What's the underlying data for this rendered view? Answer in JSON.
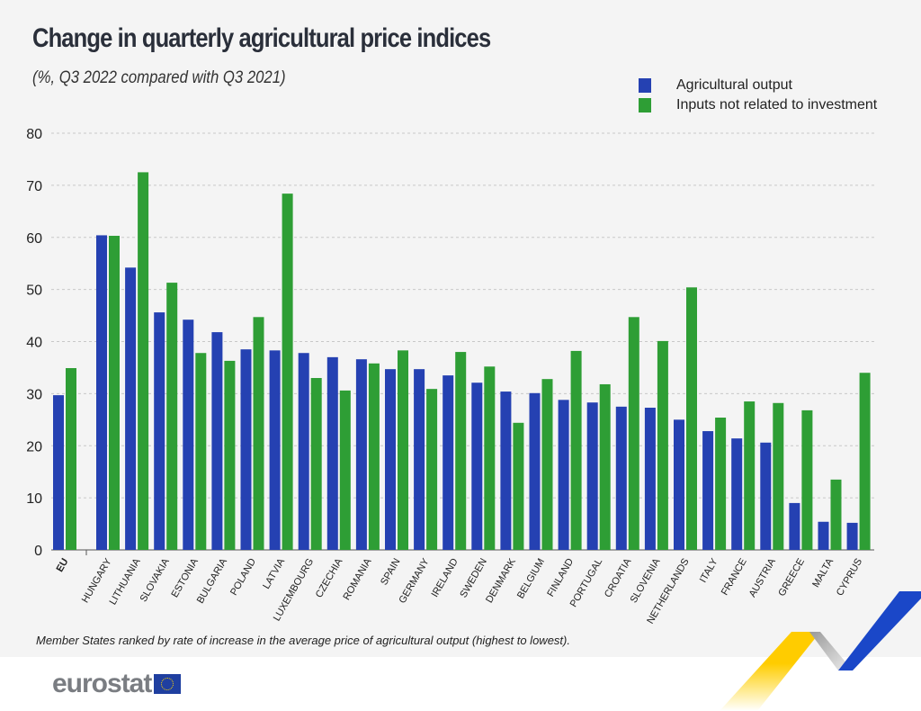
{
  "header": {
    "title": "Change in quarterly agricultural price indices",
    "subtitle": "(%, Q3 2022 compared with Q3 2021)"
  },
  "footer": {
    "note": "Member States ranked by rate of increase in the average price of agricultural output (highest to lowest).",
    "logo": "eurostat"
  },
  "chart_data": {
    "type": "bar",
    "title": "Change in quarterly agricultural price indices",
    "subtitle": "(%, Q3 2022 compared with Q3 2021)",
    "categories": [
      "EU",
      "HUNGARY",
      "LITHUANIA",
      "SLOVAKIA",
      "ESTONIA",
      "BULGARIA",
      "POLAND",
      "LATVIA",
      "LUXEMBOURG",
      "CZECHIA",
      "ROMANIA",
      "SPAIN",
      "GERMANY",
      "IRELAND",
      "SWEDEN",
      "DENMARK",
      "BELGIUM",
      "FINLAND",
      "PORTUGAL",
      "CROATIA",
      "SLOVENIA",
      "NETHERLANDS",
      "ITALY",
      "FRANCE",
      "AUSTRIA",
      "GREECE",
      "MALTA",
      "CYPRUS"
    ],
    "series": [
      {
        "name": "Agricultural output",
        "color": "#2541b2",
        "values": [
          29.7,
          60.4,
          54.2,
          45.6,
          44.2,
          41.8,
          38.5,
          38.3,
          37.8,
          37.0,
          36.6,
          34.7,
          34.7,
          33.5,
          32.1,
          30.4,
          30.1,
          28.8,
          28.3,
          27.5,
          27.3,
          25.0,
          22.8,
          21.4,
          20.6,
          9.0,
          5.4,
          5.2
        ]
      },
      {
        "name": "Inputs not related to investment",
        "color": "#2e9e35",
        "values": [
          34.9,
          60.3,
          72.5,
          51.3,
          37.8,
          36.3,
          44.7,
          68.4,
          33.0,
          30.6,
          35.8,
          38.3,
          30.9,
          38.0,
          35.2,
          24.4,
          32.8,
          38.2,
          31.8,
          44.7,
          40.1,
          50.4,
          25.4,
          28.5,
          28.2,
          26.8,
          13.5,
          34.0
        ]
      }
    ],
    "yticks": [
      0,
      10,
      20,
      30,
      40,
      50,
      60,
      70,
      80
    ],
    "ylim": [
      0,
      80
    ],
    "grid": true,
    "legend": "top-right"
  }
}
